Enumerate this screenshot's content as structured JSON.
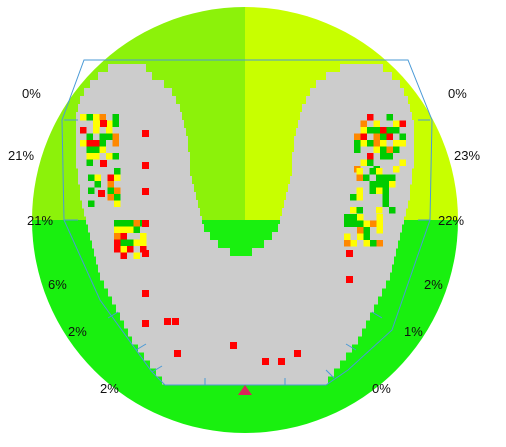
{
  "colors": {
    "background": "#ffffff",
    "sector_upper_left": "#8cf20a",
    "sector_upper_right": "#c8ff00",
    "sector_lower": "#19f00f",
    "jaw_fill": "#cccccc",
    "outline": "#4a9ad6",
    "marker": "#d9265a",
    "heat_low": "#00cc00",
    "heat_mid": "#ffff00",
    "heat_high": "#ff8800",
    "heat_max": "#ff0000"
  },
  "sector_labels": {
    "left_top": "0%",
    "left_upper": "21%",
    "left_middle": "21%",
    "left_lower": "6%",
    "left_bottom": "2%",
    "left_base": "2%",
    "right_top": "0%",
    "right_upper": "23%",
    "right_middle": "22%",
    "right_lower": "2%",
    "right_bottom": "1%",
    "right_base": "0%"
  },
  "reference_marker": "triangle-marker"
}
